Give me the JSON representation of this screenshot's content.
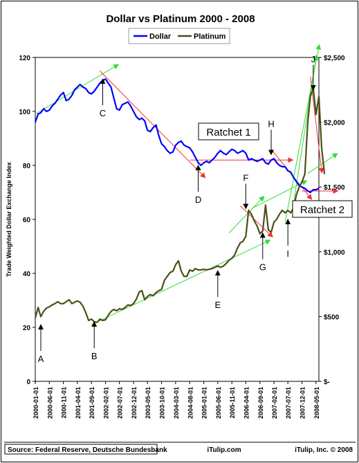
{
  "chart_data": {
    "type": "line",
    "title": "Dollar vs Platinum 2000 - 2008",
    "ylabel_left": "Trade Weighted Dollar Exchange Index",
    "left_ticks": [
      "0",
      "20",
      "40",
      "60",
      "80",
      "100",
      "120"
    ],
    "left_ylim": [
      0,
      120
    ],
    "right_ticks": [
      "$-",
      "$500",
      "$1,000",
      "$1,500",
      "$2,000",
      "$2,500"
    ],
    "right_ylim": [
      0,
      2500
    ],
    "x_tick_labels": [
      "2000-01-01",
      "2000-06-01",
      "2000-11-01",
      "2001-04-01",
      "2001-09-01",
      "2002-02-01",
      "2002-07-01",
      "2002-12-01",
      "2003-05-01",
      "2003-10-01",
      "2004-03-01",
      "2004-08-01",
      "2005-01-01",
      "2005-06-01",
      "2005-11-01",
      "2006-04-01",
      "2006-09-01",
      "2007-02-01",
      "2007-07-01",
      "2007-12-01",
      "2008-05-01"
    ],
    "x_range": [
      "2000-01-01",
      "2008-06-01"
    ],
    "legend": {
      "position": "top-center"
    },
    "grid": false,
    "series": [
      {
        "name": "Dollar",
        "axis": "left",
        "color": "#0000ff",
        "points": [
          [
            "2000-01-01",
            96
          ],
          [
            "2000-02-01",
            99
          ],
          [
            "2000-03-01",
            99.5
          ],
          [
            "2000-04-01",
            101
          ],
          [
            "2000-05-01",
            100
          ],
          [
            "2000-06-01",
            100.5
          ],
          [
            "2000-07-01",
            102
          ],
          [
            "2000-08-01",
            103
          ],
          [
            "2000-09-01",
            104.5
          ],
          [
            "2000-10-01",
            106
          ],
          [
            "2000-11-01",
            107
          ],
          [
            "2000-12-01",
            104
          ],
          [
            "2001-01-01",
            104.5
          ],
          [
            "2001-02-01",
            106
          ],
          [
            "2001-03-01",
            108
          ],
          [
            "2001-04-01",
            109
          ],
          [
            "2001-05-01",
            110
          ],
          [
            "2001-06-01",
            109
          ],
          [
            "2001-07-01",
            108.5
          ],
          [
            "2001-08-01",
            107
          ],
          [
            "2001-09-01",
            106.5
          ],
          [
            "2001-10-01",
            107.5
          ],
          [
            "2001-11-01",
            109
          ],
          [
            "2001-12-01",
            110.5
          ],
          [
            "2002-01-01",
            111.5
          ],
          [
            "2002-02-01",
            112
          ],
          [
            "2002-03-01",
            110.5
          ],
          [
            "2002-04-01",
            109
          ],
          [
            "2002-05-01",
            105
          ],
          [
            "2002-06-01",
            101
          ],
          [
            "2002-07-01",
            100.5
          ],
          [
            "2002-08-01",
            102.5
          ],
          [
            "2002-09-01",
            103
          ],
          [
            "2002-10-01",
            103.5
          ],
          [
            "2002-11-01",
            102
          ],
          [
            "2002-12-01",
            100
          ],
          [
            "2003-01-01",
            98
          ],
          [
            "2003-02-01",
            97
          ],
          [
            "2003-03-01",
            97.5
          ],
          [
            "2003-04-01",
            96.5
          ],
          [
            "2003-05-01",
            93
          ],
          [
            "2003-06-01",
            92.5
          ],
          [
            "2003-07-01",
            94
          ],
          [
            "2003-08-01",
            95
          ],
          [
            "2003-09-01",
            91
          ],
          [
            "2003-10-01",
            88
          ],
          [
            "2003-11-01",
            87
          ],
          [
            "2003-12-01",
            85.5
          ],
          [
            "2004-01-01",
            84.5
          ],
          [
            "2004-02-01",
            85
          ],
          [
            "2004-03-01",
            87.5
          ],
          [
            "2004-04-01",
            88.5
          ],
          [
            "2004-05-01",
            89
          ],
          [
            "2004-06-01",
            87.5
          ],
          [
            "2004-07-01",
            87
          ],
          [
            "2004-08-01",
            86.5
          ],
          [
            "2004-09-01",
            85
          ],
          [
            "2004-10-01",
            83
          ],
          [
            "2004-11-01",
            81
          ],
          [
            "2004-12-01",
            80
          ],
          [
            "2005-01-01",
            81
          ],
          [
            "2005-02-01",
            81.5
          ],
          [
            "2005-03-01",
            81
          ],
          [
            "2005-04-01",
            82
          ],
          [
            "2005-05-01",
            83
          ],
          [
            "2005-06-01",
            84.5
          ],
          [
            "2005-07-01",
            85.5
          ],
          [
            "2005-08-01",
            84.5
          ],
          [
            "2005-09-01",
            84
          ],
          [
            "2005-10-01",
            85
          ],
          [
            "2005-11-01",
            86
          ],
          [
            "2005-12-01",
            85.5
          ],
          [
            "2006-01-01",
            84.5
          ],
          [
            "2006-02-01",
            85
          ],
          [
            "2006-03-01",
            85.5
          ],
          [
            "2006-04-01",
            84.5
          ],
          [
            "2006-05-01",
            82
          ],
          [
            "2006-06-01",
            82.5
          ],
          [
            "2006-07-01",
            82
          ],
          [
            "2006-08-01",
            81.5
          ],
          [
            "2006-09-01",
            82
          ],
          [
            "2006-10-01",
            82.5
          ],
          [
            "2006-11-01",
            81
          ],
          [
            "2006-12-01",
            80.5
          ],
          [
            "2007-01-01",
            82
          ],
          [
            "2007-02-01",
            82.5
          ],
          [
            "2007-03-01",
            81
          ],
          [
            "2007-04-01",
            80
          ],
          [
            "2007-05-01",
            79.5
          ],
          [
            "2007-06-01",
            79.5
          ],
          [
            "2007-07-01",
            78
          ],
          [
            "2007-08-01",
            77.5
          ],
          [
            "2007-09-01",
            75.5
          ],
          [
            "2007-10-01",
            74
          ],
          [
            "2007-11-01",
            72.5
          ],
          [
            "2007-12-01",
            72
          ],
          [
            "2008-01-01",
            71.5
          ],
          [
            "2008-02-01",
            70.5
          ],
          [
            "2008-03-01",
            70
          ],
          [
            "2008-04-01",
            71
          ],
          [
            "2008-05-01",
            71
          ],
          [
            "2008-06-01",
            71.5
          ]
        ]
      },
      {
        "name": "Platinum",
        "axis": "right",
        "color": "#4d4d1a",
        "points": [
          [
            "2000-01-01",
            490
          ],
          [
            "2000-02-01",
            570
          ],
          [
            "2000-03-01",
            500
          ],
          [
            "2000-04-01",
            540
          ],
          [
            "2000-05-01",
            565
          ],
          [
            "2000-06-01",
            575
          ],
          [
            "2000-07-01",
            590
          ],
          [
            "2000-08-01",
            600
          ],
          [
            "2000-09-01",
            615
          ],
          [
            "2000-10-01",
            600
          ],
          [
            "2000-11-01",
            600
          ],
          [
            "2000-12-01",
            615
          ],
          [
            "2001-01-01",
            630
          ],
          [
            "2001-02-01",
            600
          ],
          [
            "2001-03-01",
            610
          ],
          [
            "2001-04-01",
            620
          ],
          [
            "2001-05-01",
            610
          ],
          [
            "2001-06-01",
            580
          ],
          [
            "2001-07-01",
            530
          ],
          [
            "2001-08-01",
            470
          ],
          [
            "2001-09-01",
            480
          ],
          [
            "2001-10-01",
            460
          ],
          [
            "2001-11-01",
            455
          ],
          [
            "2001-12-01",
            480
          ],
          [
            "2002-01-01",
            470
          ],
          [
            "2002-02-01",
            475
          ],
          [
            "2002-03-01",
            510
          ],
          [
            "2002-04-01",
            540
          ],
          [
            "2002-05-01",
            555
          ],
          [
            "2002-06-01",
            545
          ],
          [
            "2002-07-01",
            560
          ],
          [
            "2002-08-01",
            555
          ],
          [
            "2002-09-01",
            570
          ],
          [
            "2002-10-01",
            590
          ],
          [
            "2002-11-01",
            585
          ],
          [
            "2002-12-01",
            600
          ],
          [
            "2003-01-01",
            635
          ],
          [
            "2003-02-01",
            690
          ],
          [
            "2003-03-01",
            700
          ],
          [
            "2003-04-01",
            630
          ],
          [
            "2003-05-01",
            655
          ],
          [
            "2003-06-01",
            670
          ],
          [
            "2003-07-01",
            660
          ],
          [
            "2003-08-01",
            685
          ],
          [
            "2003-09-01",
            700
          ],
          [
            "2003-10-01",
            710
          ],
          [
            "2003-11-01",
            780
          ],
          [
            "2003-12-01",
            810
          ],
          [
            "2004-01-01",
            840
          ],
          [
            "2004-02-01",
            850
          ],
          [
            "2004-03-01",
            900
          ],
          [
            "2004-04-01",
            930
          ],
          [
            "2004-05-01",
            850
          ],
          [
            "2004-06-01",
            810
          ],
          [
            "2004-07-01",
            810
          ],
          [
            "2004-08-01",
            860
          ],
          [
            "2004-09-01",
            850
          ],
          [
            "2004-10-01",
            870
          ],
          [
            "2004-11-01",
            860
          ],
          [
            "2004-12-01",
            860
          ],
          [
            "2005-01-01",
            865
          ],
          [
            "2005-02-01",
            860
          ],
          [
            "2005-03-01",
            865
          ],
          [
            "2005-04-01",
            870
          ],
          [
            "2005-05-01",
            880
          ],
          [
            "2005-06-01",
            890
          ],
          [
            "2005-07-01",
            880
          ],
          [
            "2005-08-01",
            890
          ],
          [
            "2005-09-01",
            910
          ],
          [
            "2005-10-01",
            935
          ],
          [
            "2005-11-01",
            950
          ],
          [
            "2005-12-01",
            975
          ],
          [
            "2006-01-01",
            1030
          ],
          [
            "2006-02-01",
            1070
          ],
          [
            "2006-03-01",
            1080
          ],
          [
            "2006-04-01",
            1120
          ],
          [
            "2006-05-01",
            1320
          ],
          [
            "2006-06-01",
            1290
          ],
          [
            "2006-07-01",
            1240
          ],
          [
            "2006-08-01",
            1200
          ],
          [
            "2006-09-01",
            1140
          ],
          [
            "2006-10-01",
            1160
          ],
          [
            "2006-11-01",
            1360
          ],
          [
            "2006-12-01",
            1170
          ],
          [
            "2007-01-01",
            1150
          ],
          [
            "2007-02-01",
            1230
          ],
          [
            "2007-03-01",
            1250
          ],
          [
            "2007-04-01",
            1290
          ],
          [
            "2007-05-01",
            1320
          ],
          [
            "2007-06-01",
            1300
          ],
          [
            "2007-07-01",
            1320
          ],
          [
            "2007-08-01",
            1300
          ],
          [
            "2007-09-01",
            1340
          ],
          [
            "2007-10-01",
            1440
          ],
          [
            "2007-11-01",
            1500
          ],
          [
            "2007-12-01",
            1540
          ],
          [
            "2008-01-01",
            1600
          ],
          [
            "2008-02-01",
            2000
          ],
          [
            "2008-03-01",
            2200
          ],
          [
            "2008-04-01",
            2260
          ],
          [
            "2008-05-01",
            2060
          ],
          [
            "2008-06-01",
            2200
          ],
          [
            "2008-07-01",
            1800
          ],
          [
            "2008-08-01",
            1600
          ]
        ]
      }
    ],
    "annotations": [
      {
        "label": "A",
        "date": "2000-03-01",
        "value": 21,
        "axis": "left",
        "arrow": "up"
      },
      {
        "label": "B",
        "date": "2001-10-01",
        "value": 22,
        "axis": "left",
        "arrow": "up"
      },
      {
        "label": "C",
        "date": "2002-01-01",
        "value": 112,
        "axis": "left",
        "arrow": "up"
      },
      {
        "label": "D",
        "date": "2004-11-01",
        "value": 80,
        "axis": "left",
        "arrow": "up"
      },
      {
        "label": "E",
        "date": "2005-06-01",
        "value": 41,
        "axis": "left",
        "arrow": "up"
      },
      {
        "label": "F",
        "date": "2006-04-01",
        "value": 64,
        "axis": "left",
        "arrow": "down"
      },
      {
        "label": "G",
        "date": "2006-10-01",
        "value": 55,
        "axis": "left",
        "arrow": "up"
      },
      {
        "label": "H",
        "date": "2007-01-01",
        "value": 84,
        "axis": "left",
        "arrow": "down"
      },
      {
        "label": "I",
        "date": "2007-07-01",
        "value": 60,
        "axis": "left",
        "arrow": "up"
      },
      {
        "label": "J",
        "date": "2008-04-01",
        "value": 108,
        "axis": "left",
        "arrow": "down"
      }
    ],
    "callouts": [
      "Ratchet 1",
      "Ratchet 2"
    ],
    "footer": {
      "source": "Source: Federal Reserve, Deutsche Bundesbank",
      "site": "iTulip.com",
      "copyright": "iTulip, Inc. © 2008"
    }
  }
}
